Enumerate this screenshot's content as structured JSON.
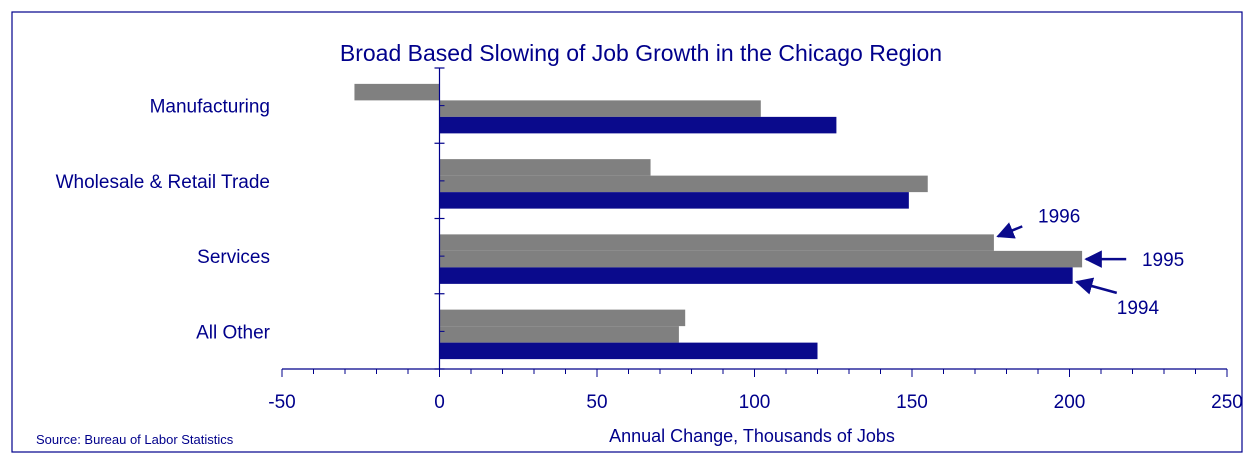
{
  "chart_data": {
    "type": "bar",
    "orientation": "horizontal",
    "title": "Broad Based Slowing of Job Growth in the Chicago Region",
    "xlabel": "Annual Change, Thousands of Jobs",
    "source": "Source: Bureau of Labor Statistics",
    "xlim": [
      -50,
      250
    ],
    "xticks": [
      -50,
      0,
      50,
      100,
      150,
      200,
      250
    ],
    "categories": [
      "Manufacturing",
      "Wholesale & Retail Trade",
      "Services",
      "All Other"
    ],
    "series": [
      {
        "name": "1996",
        "values": [
          -27,
          67,
          176,
          78
        ],
        "color": "#808080"
      },
      {
        "name": "1995",
        "values": [
          102,
          155,
          204,
          76
        ],
        "color": "#808080"
      },
      {
        "name": "1994",
        "values": [
          126,
          149,
          201,
          120
        ],
        "color": "#0a0a8c"
      }
    ],
    "colors": {
      "text": "#00008b",
      "axis": "#00008b",
      "frame": "#00008b"
    }
  }
}
